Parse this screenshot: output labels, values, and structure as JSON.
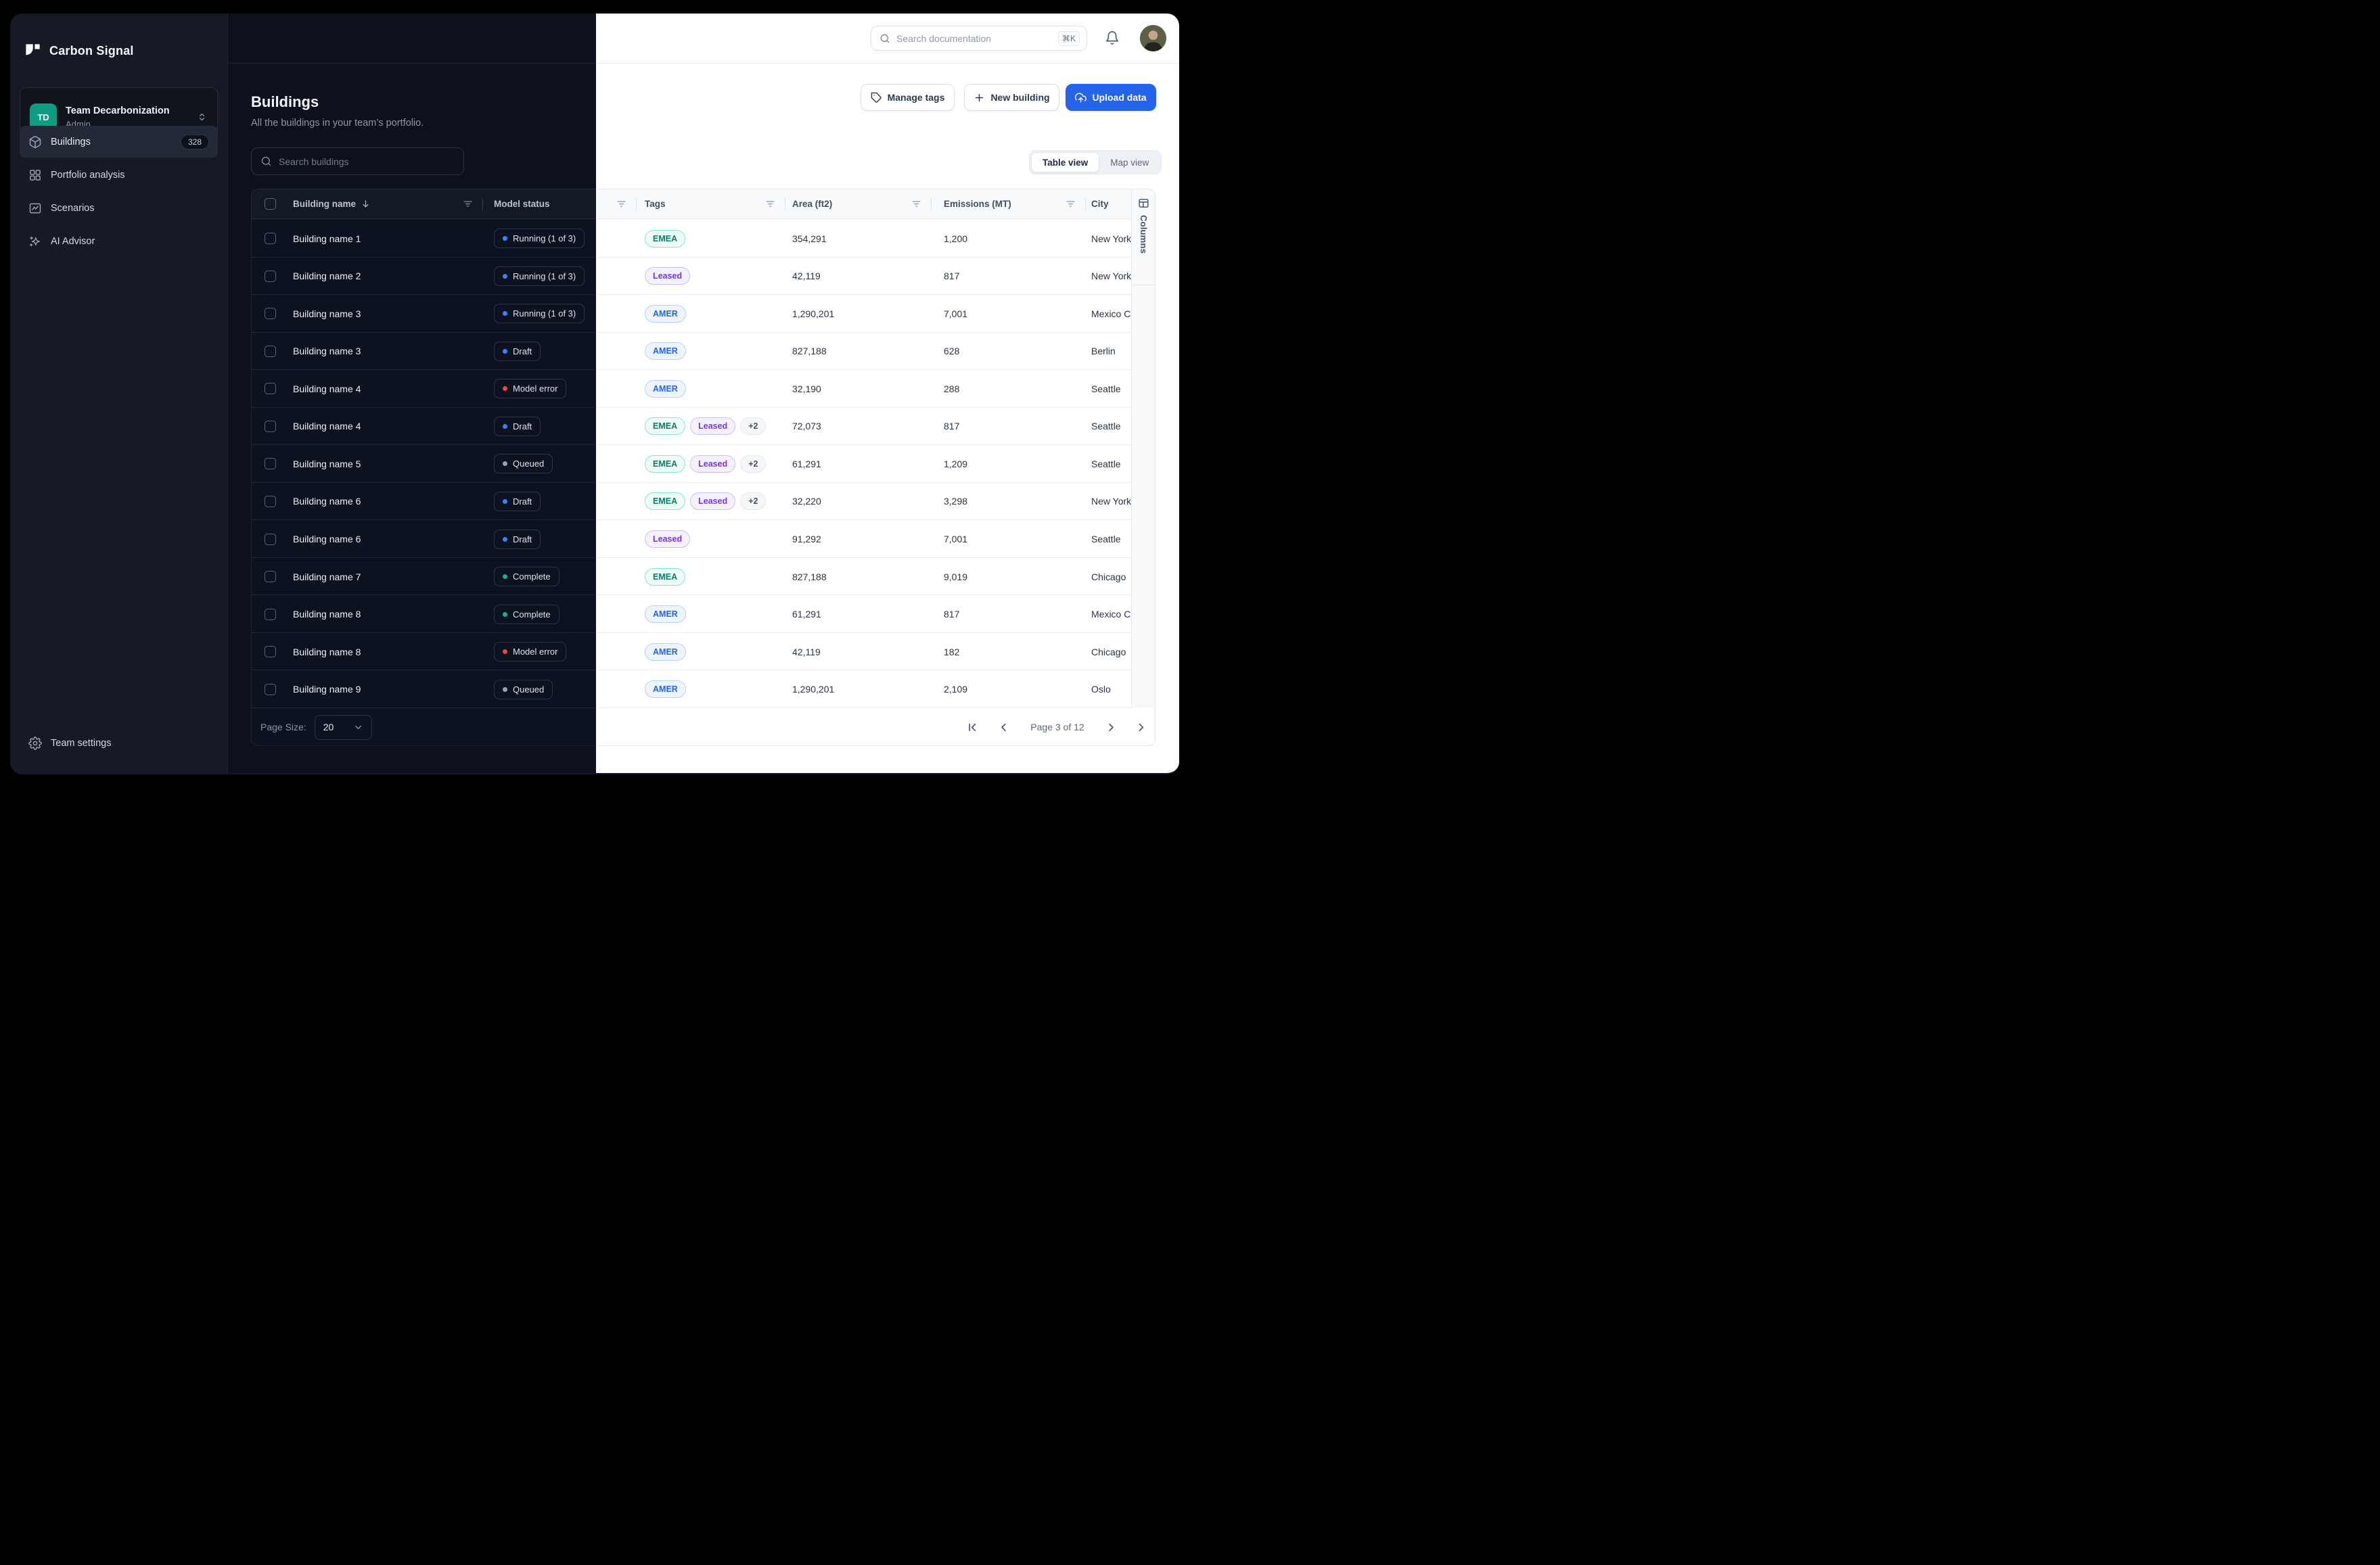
{
  "brand": {
    "name": "Carbon Signal"
  },
  "team": {
    "initials": "TD",
    "name": "Team Decarbonization",
    "role": "Admin"
  },
  "sidebar": {
    "items": [
      {
        "label": "Buildings",
        "icon": "cube-icon",
        "badge": "328",
        "active": true
      },
      {
        "label": "Portfolio analysis",
        "icon": "grid-icon",
        "badge": null,
        "active": false
      },
      {
        "label": "Scenarios",
        "icon": "chart-image-icon",
        "badge": null,
        "active": false
      },
      {
        "label": "AI Advisor",
        "icon": "sparkles-icon",
        "badge": null,
        "active": false
      }
    ],
    "footer_item": {
      "label": "Team settings",
      "icon": "gear-icon"
    }
  },
  "topbar": {
    "search_placeholder": "Search documentation",
    "shortcut": "⌘K"
  },
  "page": {
    "title": "Buildings",
    "subtitle": "All the buildings in your team’s portfolio.",
    "search_placeholder": "Search buildings"
  },
  "actions": {
    "manage_tags": "Manage tags",
    "new_building": "New building",
    "upload_data": "Upload data"
  },
  "view_toggle": {
    "options": [
      "Table view",
      "Map view"
    ],
    "active": "Table view"
  },
  "table": {
    "columns": [
      "Building name",
      "Model status",
      "Tags",
      "Area (ft2)",
      "Emissions (MT)",
      "City"
    ],
    "columns_panel_label": "Columns",
    "rows": [
      {
        "name": "Building name 1",
        "status": "Running (1 of 3)",
        "status_color": "blue",
        "tags": [
          "EMEA"
        ],
        "area": "354,291",
        "emissions": "1,200",
        "city": "New York"
      },
      {
        "name": "Building name 2",
        "status": "Running (1 of 3)",
        "status_color": "blue",
        "tags": [
          "Leased"
        ],
        "area": "42,119",
        "emissions": "817",
        "city": "New York"
      },
      {
        "name": "Building name 3",
        "status": "Running (1 of 3)",
        "status_color": "blue",
        "tags": [
          "AMER"
        ],
        "area": "1,290,201",
        "emissions": "7,001",
        "city": "Mexico City"
      },
      {
        "name": "Building name 3",
        "status": "Draft",
        "status_color": "blue",
        "tags": [
          "AMER"
        ],
        "area": "827,188",
        "emissions": "628",
        "city": "Berlin"
      },
      {
        "name": "Building name 4",
        "status": "Model error",
        "status_color": "red",
        "tags": [
          "AMER"
        ],
        "area": "32,190",
        "emissions": "288",
        "city": "Seattle"
      },
      {
        "name": "Building name 4",
        "status": "Draft",
        "status_color": "blue",
        "tags": [
          "EMEA",
          "Leased",
          "+2"
        ],
        "area": "72,073",
        "emissions": "817",
        "city": "Seattle"
      },
      {
        "name": "Building name 5",
        "status": "Queued",
        "status_color": "gray",
        "tags": [
          "EMEA",
          "Leased",
          "+2"
        ],
        "area": "61,291",
        "emissions": "1,209",
        "city": "Seattle"
      },
      {
        "name": "Building name 6",
        "status": "Draft",
        "status_color": "blue",
        "tags": [
          "EMEA",
          "Leased",
          "+2"
        ],
        "area": "32,220",
        "emissions": "3,298",
        "city": "New York"
      },
      {
        "name": "Building name 6",
        "status": "Draft",
        "status_color": "blue",
        "tags": [
          "Leased"
        ],
        "area": "91,292",
        "emissions": "7,001",
        "city": "Seattle"
      },
      {
        "name": "Building name 7",
        "status": "Complete",
        "status_color": "green",
        "tags": [
          "EMEA"
        ],
        "area": "827,188",
        "emissions": "9,019",
        "city": "Chicago"
      },
      {
        "name": "Building name 8",
        "status": "Complete",
        "status_color": "green",
        "tags": [
          "AMER"
        ],
        "area": "61,291",
        "emissions": "817",
        "city": "Mexico City"
      },
      {
        "name": "Building name 8",
        "status": "Model error",
        "status_color": "red",
        "tags": [
          "AMER"
        ],
        "area": "42,119",
        "emissions": "182",
        "city": "Chicago"
      },
      {
        "name": "Building name 9",
        "status": "Queued",
        "status_color": "gray",
        "tags": [
          "AMER"
        ],
        "area": "1,290,201",
        "emissions": "2,109",
        "city": "Oslo"
      }
    ],
    "footer": {
      "page_size_label": "Page Size:",
      "page_size": "20",
      "pagination_text": "Page 3 of 12"
    }
  },
  "colors": {
    "accent": "#2563eb",
    "teal_avatar": "#0f9c85",
    "status_dots": {
      "blue": "#3b82f6",
      "red": "#ef4444",
      "gray": "#9aa3b2",
      "green": "#10b981"
    },
    "dark_bg": "#0c111c",
    "sidebar_bg": "#151a24",
    "tag_emea_text": "#0e7a6a",
    "tag_leased_text": "#7733e6",
    "tag_amer_text": "#2463eb"
  }
}
